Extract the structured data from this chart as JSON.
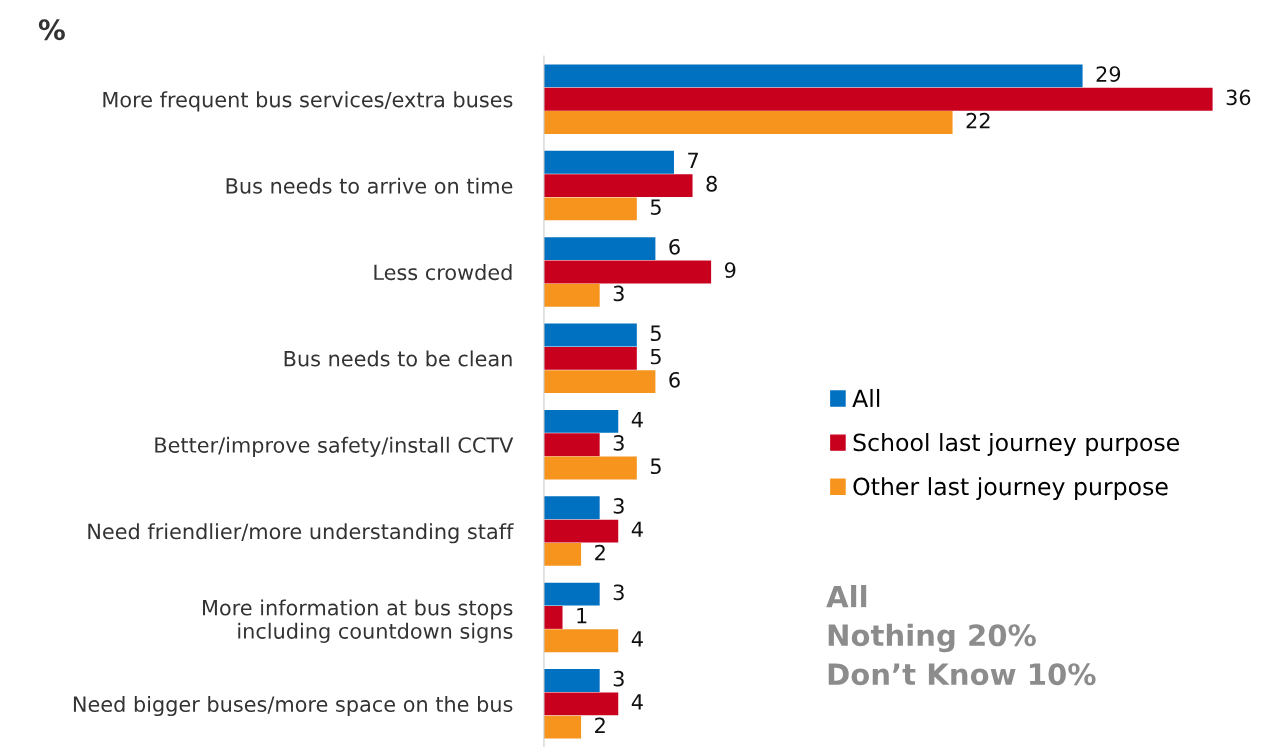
{
  "chart_data": {
    "type": "bar",
    "orientation": "horizontal",
    "title": "%",
    "categories": [
      "More frequent bus services/extra buses",
      "Bus needs to arrive on time",
      "Less crowded",
      "Bus needs to be clean",
      "Better/improve safety/install CCTV",
      "Need friendlier/more understanding staff",
      "More information at bus stops\nincluding countdown signs",
      "Need bigger buses/more space on the bus"
    ],
    "series": [
      {
        "name": "All",
        "color": "#0070c0",
        "values": [
          29,
          7,
          6,
          5,
          4,
          3,
          3,
          3
        ]
      },
      {
        "name": "School last journey purpose",
        "color": "#c8001e",
        "values": [
          36,
          8,
          9,
          5,
          3,
          4,
          1,
          4
        ]
      },
      {
        "name": "Other last journey purpose",
        "color": "#f7941d",
        "values": [
          22,
          5,
          3,
          6,
          5,
          2,
          4,
          2
        ]
      }
    ],
    "tick_labels": "y",
    "data_labels": true,
    "legend": "right",
    "grid": false,
    "annotations": [
      "All",
      "Nothing 20%",
      "Don’t Know 10%"
    ]
  }
}
